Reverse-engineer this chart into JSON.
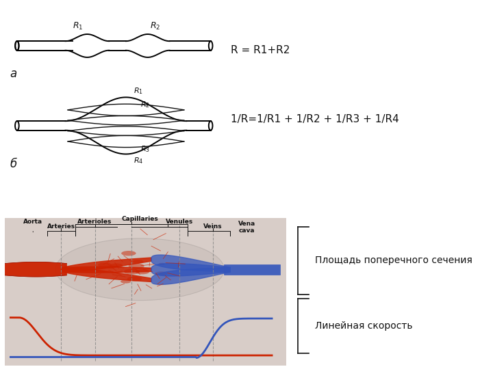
{
  "bg_color": "#ffffff",
  "formula_series": "R = R1+R2",
  "formula_parallel": "1/R=1/R1 + 1/R2 + 1/R3 + 1/R4",
  "label_a": "а",
  "label_b": "б",
  "bottom_bg": "#d8cdc8",
  "label_area": "Площадь поперечного сечения",
  "label_speed": "Линейная скорость",
  "red": "#cc2200",
  "blue": "#3355bb",
  "black": "#111111"
}
